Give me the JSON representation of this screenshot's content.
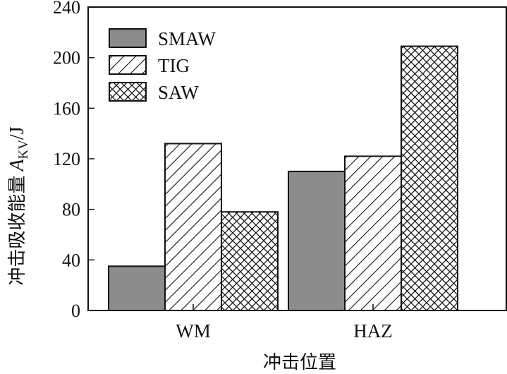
{
  "chart_data": {
    "type": "bar",
    "categories": [
      "WM",
      "HAZ"
    ],
    "series": [
      {
        "name": "SMAW",
        "values": [
          35,
          110
        ],
        "fill": "#8c8c8c",
        "pattern": "solid"
      },
      {
        "name": "TIG",
        "values": [
          132,
          122
        ],
        "fill": "#ffffff",
        "pattern": "diagonal"
      },
      {
        "name": "SAW",
        "values": [
          78,
          209
        ],
        "fill": "#ffffff",
        "pattern": "crosshatch"
      }
    ],
    "xlabel": "冲击位置",
    "ylabel": {
      "main": "冲击吸收能量",
      "symbol": "A",
      "subscript": "KV",
      "unit": "/J"
    },
    "ylim": [
      0,
      240
    ],
    "yticks": [
      0,
      40,
      80,
      120,
      160,
      200,
      240
    ],
    "grid": false,
    "legend_position": "top-left"
  }
}
